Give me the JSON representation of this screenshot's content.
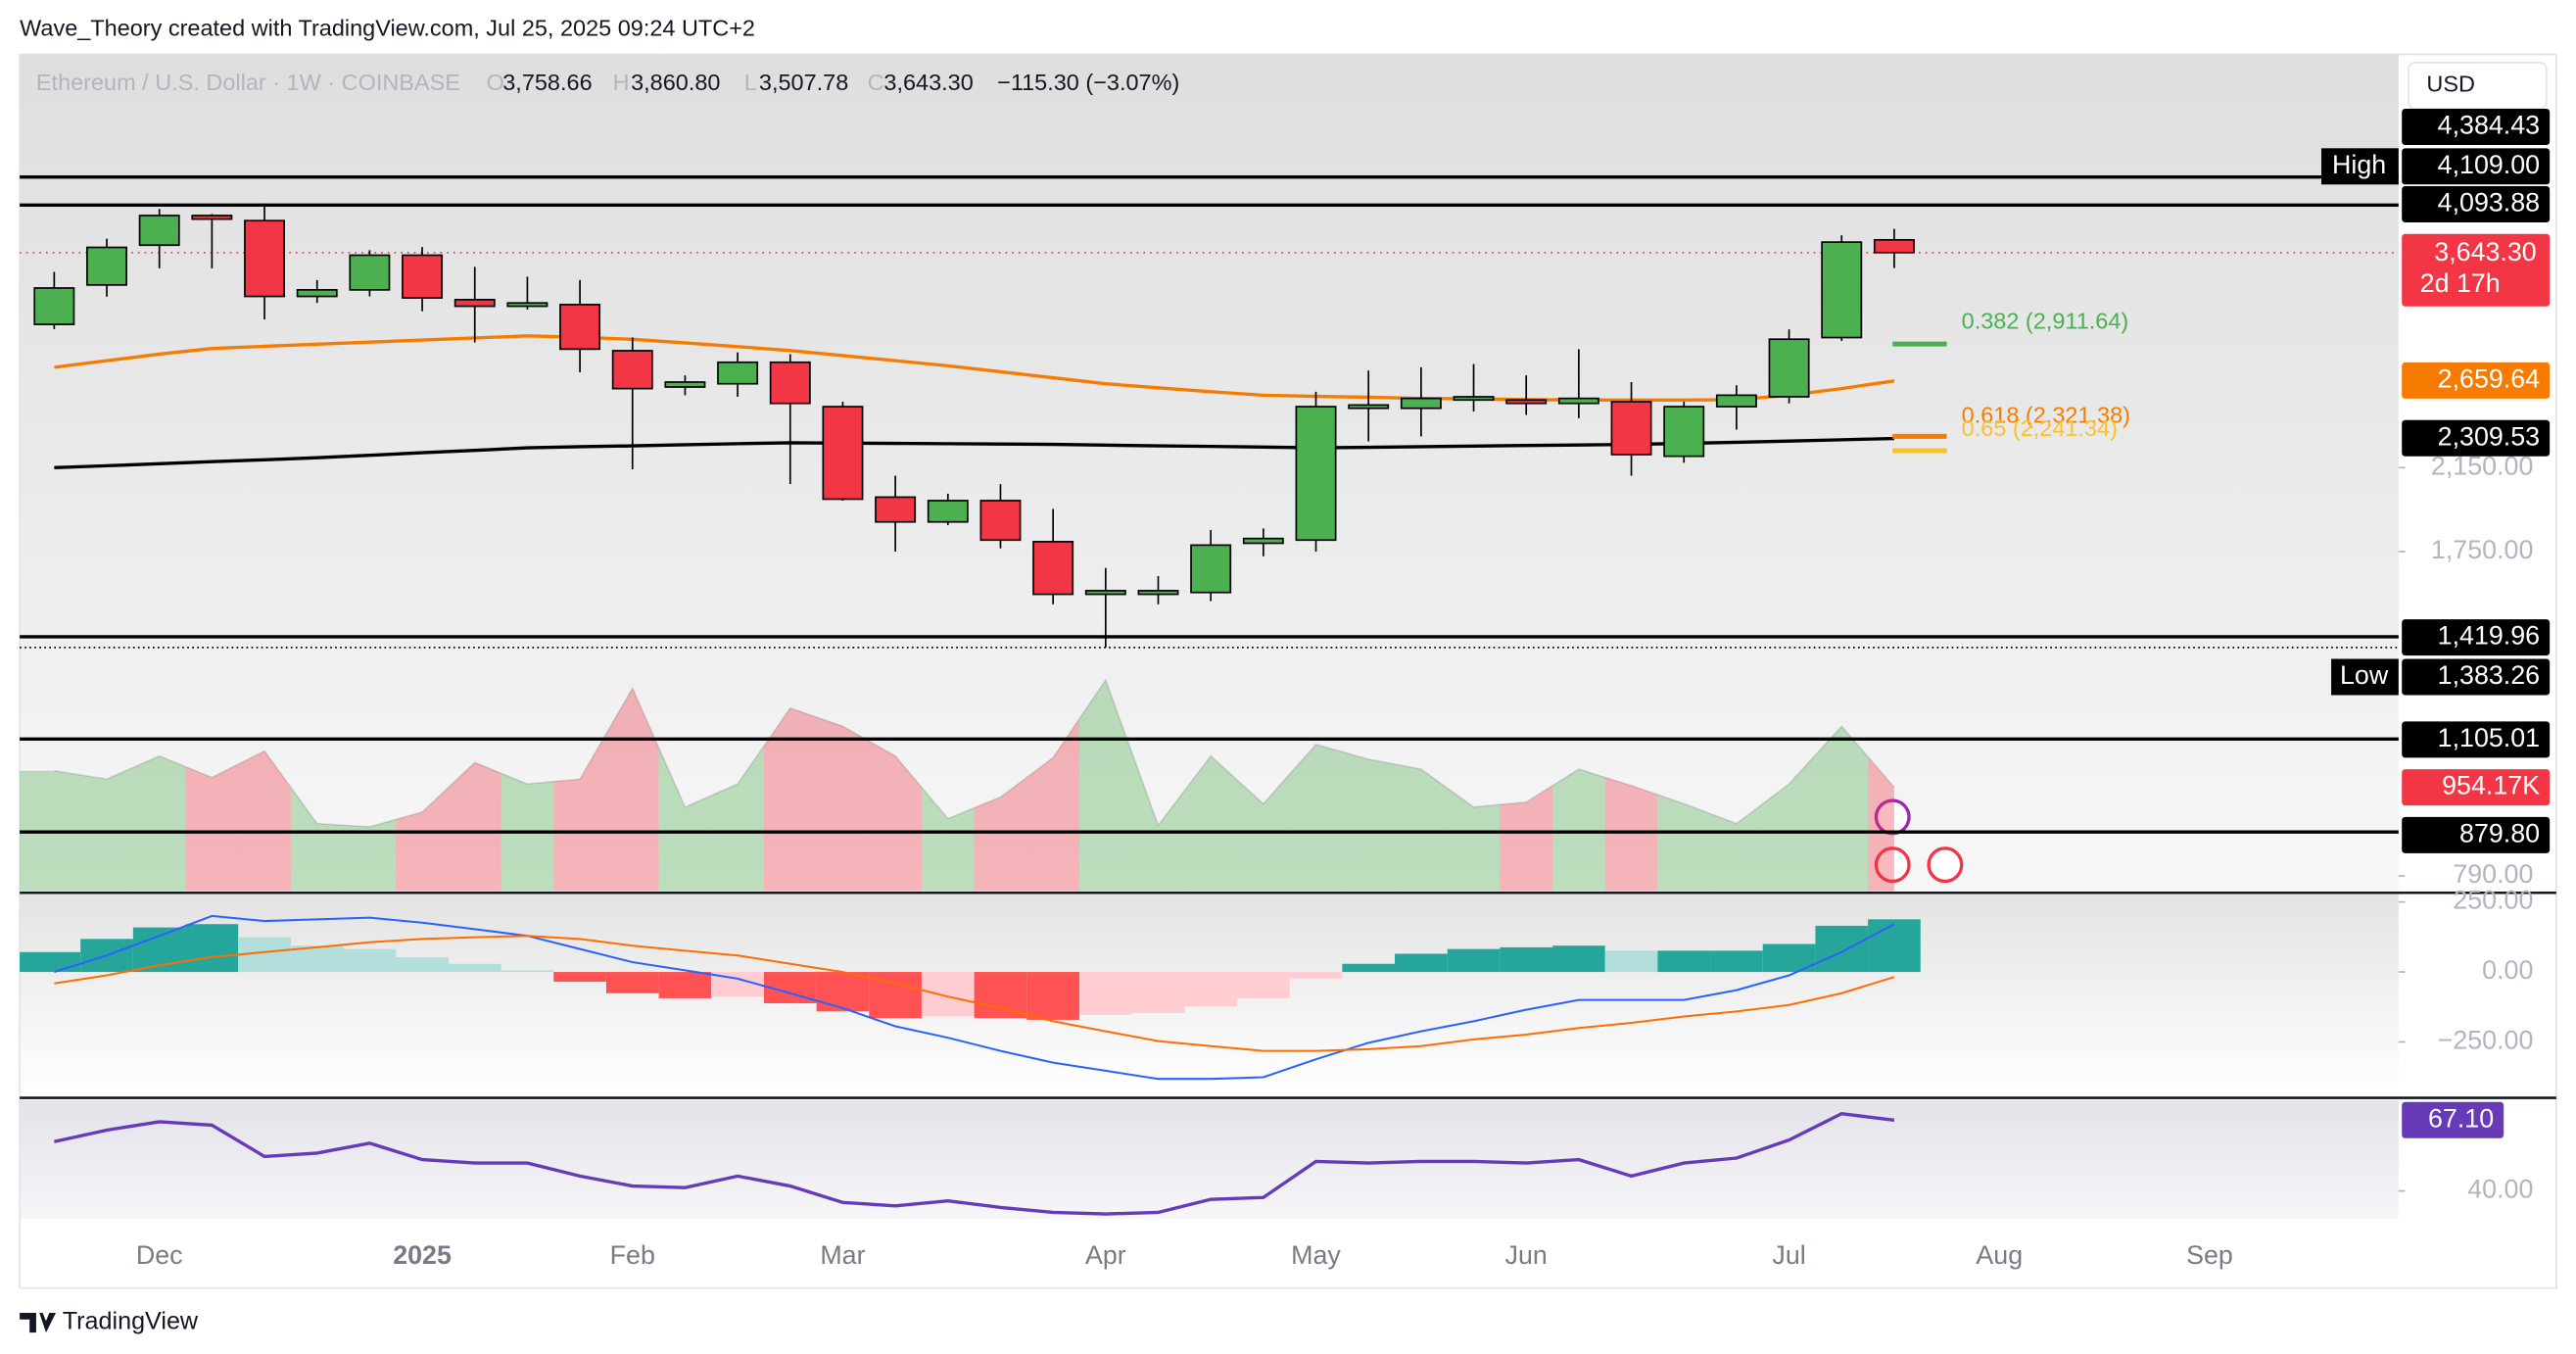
{
  "chart_data": {
    "type": "candlestick",
    "header": "Wave_Theory created with TradingView.com, Jul 25, 2025 09:24 UTC+2",
    "legend": {
      "symbol": "Ethereum / U.S. Dollar · 1W · COINBASE",
      "o_tag": "O",
      "open": "3,758.66",
      "h_tag": "H",
      "high": "3,860.80",
      "l_tag": "L",
      "low": "3,507.78",
      "c_tag": "C",
      "close": "3,643.30",
      "change": "−115.30 (−3.07%)"
    },
    "currency": "USD",
    "footer": "TradingView",
    "log": true,
    "ylim": [
      761,
      5924
    ],
    "yticks": [
      {
        "value": 2150,
        "label": "2,150.00"
      },
      {
        "value": 1750,
        "label": "1,750.00"
      },
      {
        "value": 790,
        "label": "790.00"
      }
    ],
    "up_color": "#4caf50",
    "down_color": "#f23645",
    "categories": [
      null,
      null,
      "Dec",
      null,
      null,
      null,
      null,
      "2025",
      null,
      null,
      null,
      "Feb",
      null,
      null,
      null,
      "Mar",
      null,
      null,
      null,
      null,
      "Apr",
      null,
      null,
      null,
      "May",
      null,
      null,
      null,
      "Jun",
      null,
      null,
      null,
      null,
      "Jul",
      null,
      null,
      null,
      "Aug",
      null,
      null,
      null,
      "Sep"
    ],
    "open": [
      3055,
      3365,
      3710,
      3990,
      3940,
      3272,
      3325,
      3620,
      3246,
      3194,
      3207,
      2864,
      2620,
      2641,
      2784,
      2497,
      2000,
      1882,
      1983,
      1793,
      1576,
      1576,
      1583,
      1786,
      1800,
      2487,
      2487,
      2538,
      2538,
      2517,
      2527,
      2211,
      2497,
      2558,
      2958,
      3758.66,
      null,
      null,
      null,
      null,
      null,
      null
    ],
    "high": [
      3475,
      3770,
      4055,
      4005,
      4109.0,
      3406,
      3665,
      3693,
      3518,
      3434,
      3406,
      2958,
      2696,
      2852,
      2840,
      2527,
      2108,
      2017,
      2065,
      1943,
      1681,
      1648,
      1845,
      1852,
      2590,
      2728,
      2750,
      2772,
      2696,
      2875,
      2652,
      2527,
      2631,
      3018,
      3800,
      3860.8,
      null,
      null,
      null,
      null,
      null,
      null
    ],
    "low": [
      3020,
      3270,
      3505,
      3505,
      3092,
      3220,
      3272,
      3155,
      2922,
      3168,
      2717,
      2141,
      2568,
      2558,
      2065,
      1983,
      1750,
      1867,
      1764,
      1538,
      1383.26,
      1538,
      1550,
      1730,
      1750,
      2293,
      2321,
      2467,
      2447,
      2427,
      2108,
      2176,
      2360,
      2517,
      2934,
      3507.78,
      null,
      null,
      null,
      null,
      null,
      null
    ],
    "close": [
      3340,
      3690,
      3990,
      3955,
      3272,
      3325,
      3620,
      3260,
      3194,
      3220,
      2875,
      2610,
      2652,
      2784,
      2517,
      1990,
      1882,
      1983,
      1800,
      1576,
      1590,
      1590,
      1778,
      1807,
      2497,
      2507,
      2548,
      2558,
      2517,
      2548,
      2220,
      2497,
      2568,
      2946,
      3738,
      3643.3,
      null,
      null,
      null,
      null,
      null,
      null
    ],
    "current": {
      "label": "3,643.30",
      "countdown": "2d 17h",
      "color": "#f23645"
    },
    "high_mark": {
      "tag": "High",
      "value": 4109.0,
      "label": "4,109.00"
    },
    "low_mark": {
      "tag": "Low",
      "value": 1383.26,
      "label": "1,383.26"
    },
    "levels": [
      {
        "value": 4384.43,
        "label": "4,384.43"
      },
      {
        "value": 4093.88,
        "label": "4,093.88"
      },
      {
        "value": 1419.96,
        "label": "1,419.96"
      },
      {
        "value": 1105.01,
        "label": "1,105.01"
      },
      {
        "value": 879.8,
        "label": "879.80"
      }
    ],
    "ma": [
      {
        "color": "#f57c00",
        "last_label": "2,659.64",
        "values": [
          2750,
          2795,
          2840,
          2880,
          2895,
          2910,
          2925,
          2940,
          2955,
          2970,
          2960,
          2945,
          2920,
          2893,
          2865,
          2830,
          2795,
          2760,
          2720,
          2680,
          2641,
          2615,
          2590,
          2568,
          2561,
          2555,
          2548,
          2545,
          2541,
          2538,
          2538,
          2538,
          2540,
          2568,
          2610,
          2659.64,
          null,
          null,
          null,
          null,
          null,
          null
        ]
      },
      {
        "color": "#000000",
        "last_label": "2,309.53",
        "values": [
          2150,
          2160,
          2171,
          2182,
          2192,
          2203,
          2216,
          2230,
          2243,
          2257,
          2263,
          2268,
          2274,
          2280,
          2285,
          2283,
          2282,
          2280,
          2278,
          2276,
          2272,
          2268,
          2265,
          2261,
          2257,
          2260,
          2263,
          2267,
          2270,
          2273,
          2276,
          2282,
          2288,
          2295,
          2302,
          2309.53,
          null,
          null,
          null,
          null,
          null,
          null
        ]
      }
    ],
    "fib": [
      {
        "label": "0.382 (2,911.64)",
        "value": 2911.64,
        "color": "#4caf50"
      },
      {
        "label": "0.618 (2,321.38)",
        "value": 2321.38,
        "color": "#f57c00"
      },
      {
        "label": "0.65 (2,241.34)",
        "value": 2241.34,
        "color": "#fbc02d"
      }
    ],
    "volume": {
      "ylim": [
        0,
        7690000
      ],
      "last_label": "954.17K",
      "up_color": "rgba(76,175,80,0.35)",
      "down_color": "rgba(242,54,69,0.35)",
      "values": [
        1106000,
        1030000,
        1242000,
        1045000,
        1288000,
        621000,
        591000,
        727000,
        1182000,
        985000,
        1030000,
        1864000,
        773000,
        985000,
        1682000,
        1515000,
        1242000,
        667000,
        864000,
        1227000,
        1939000,
        606000,
        1242000,
        803000,
        1348000,
        1212000,
        1121000,
        773000,
        818000,
        1121000,
        970000,
        803000,
        621000,
        985000,
        1515000,
        954170,
        null,
        null,
        null,
        null,
        null,
        null
      ]
    },
    "macd": {
      "ylim": [
        -441,
        277
      ],
      "yticks": [
        {
          "value": 250,
          "label": "250.00"
        },
        {
          "value": 0,
          "label": "0.00"
        },
        {
          "value": -250,
          "label": "−250.00"
        }
      ],
      "histogram": [
        71,
        118,
        159,
        171,
        124,
        94,
        82,
        53,
        29,
        6,
        -35,
        -76,
        -94,
        -88,
        -112,
        -141,
        -165,
        -159,
        -165,
        -171,
        -153,
        -147,
        -124,
        -94,
        -24,
        29,
        65,
        82,
        88,
        94,
        76,
        76,
        76,
        100,
        165,
        188,
        null,
        null,
        null,
        null,
        null,
        null
      ],
      "hist_colors": [
        "#26a69a",
        "#26a69a",
        "#26a69a",
        "#26a69a",
        "#b2dfdb",
        "#b2dfdb",
        "#b2dfdb",
        "#b2dfdb",
        "#b2dfdb",
        "#b2dfdb",
        "#ff5252",
        "#ff5252",
        "#ff5252",
        "#ffcdd2",
        "#ff5252",
        "#ff5252",
        "#ff5252",
        "#ffcdd2",
        "#ff5252",
        "#ff5252",
        "#ffcdd2",
        "#ffcdd2",
        "#ffcdd2",
        "#ffcdd2",
        "#ffcdd2",
        "#26a69a",
        "#26a69a",
        "#26a69a",
        "#26a69a",
        "#26a69a",
        "#b2dfdb",
        "#26a69a",
        "#26a69a",
        "#26a69a",
        "#26a69a",
        "#26a69a",
        null,
        null,
        null,
        null,
        null,
        null
      ],
      "macd": {
        "color": "#2962ff",
        "values": [
          0,
          59,
          129,
          200,
          182,
          188,
          194,
          176,
          153,
          129,
          82,
          35,
          6,
          -24,
          -76,
          -129,
          -194,
          -235,
          -282,
          -324,
          -353,
          -382,
          -382,
          -376,
          -312,
          -253,
          -212,
          -176,
          -135,
          -100,
          -100,
          -100,
          -65,
          -12,
          71,
          171,
          null,
          null,
          null,
          null,
          null,
          null
        ]
      },
      "signal": {
        "color": "#ff6d00",
        "values": [
          -41,
          -12,
          24,
          53,
          71,
          88,
          106,
          118,
          124,
          129,
          118,
          94,
          76,
          59,
          29,
          0,
          -41,
          -88,
          -129,
          -176,
          -212,
          -247,
          -265,
          -282,
          -282,
          -276,
          -265,
          -241,
          -224,
          -200,
          -182,
          -159,
          -141,
          -118,
          -76,
          -18,
          null,
          null,
          null,
          null,
          null,
          null
        ]
      }
    },
    "rsi": {
      "ylim": [
        29.3,
        74.7
      ],
      "yticks": [
        {
          "value": 40,
          "label": "40.00"
        }
      ],
      "color": "#673ab7",
      "last_label": "67.10",
      "values": [
        58.9,
        63.3,
        66.5,
        65.2,
        53.2,
        54.5,
        58.3,
        52.0,
        50.7,
        50.7,
        45.7,
        41.9,
        41.3,
        45.7,
        41.9,
        35.6,
        34.3,
        36.2,
        33.7,
        31.8,
        31.2,
        31.8,
        36.8,
        37.5,
        51.3,
        50.7,
        51.3,
        51.3,
        50.7,
        52.0,
        45.7,
        50.7,
        52.6,
        59.5,
        69.6,
        67.1,
        null,
        null,
        null,
        null,
        null,
        null
      ]
    }
  }
}
